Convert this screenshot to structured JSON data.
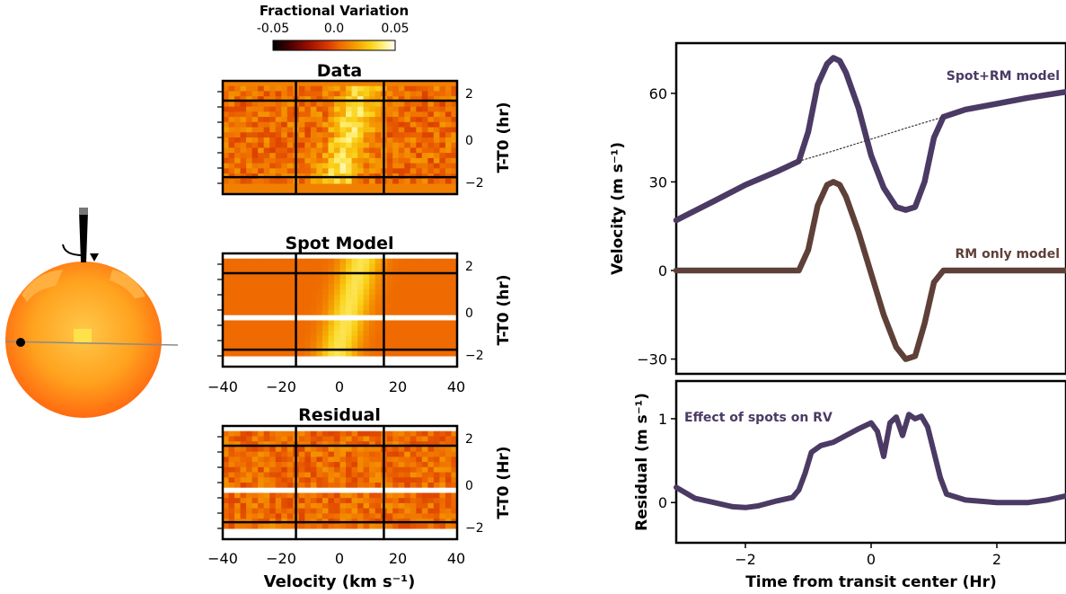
{
  "colorbar": {
    "title": "Fractional Variation",
    "ticks": [
      "-0.05",
      "0.0",
      "0.05"
    ],
    "range": [
      -0.05,
      0.05
    ]
  },
  "heatmap_panels": [
    {
      "title": "Data",
      "ylabel": "T-T0 (hr)",
      "yticks": [
        "2",
        "0",
        "−2"
      ],
      "white_band": false,
      "noisy": true,
      "signal": true
    },
    {
      "title": "Spot Model",
      "ylabel": "T-T0 (hr)",
      "yticks": [
        "2",
        "0",
        "−2"
      ],
      "white_band": true,
      "noisy": false,
      "signal": true
    },
    {
      "title": "Residual",
      "ylabel": "T-T0 (Hr)",
      "yticks": [
        "2",
        "0",
        "−2"
      ],
      "white_band": true,
      "noisy": true,
      "signal": false
    }
  ],
  "heatmap_x": {
    "ticks": [
      "−40",
      "−20",
      "0",
      "20",
      "40"
    ],
    "range": [
      -40,
      40
    ],
    "vlines": [
      -15,
      15
    ],
    "label": "Velocity (km s⁻¹)"
  },
  "colors": {
    "cmap": [
      "#000000",
      "#4a0000",
      "#a01000",
      "#d83a00",
      "#ef6a00",
      "#f5a000",
      "#fad21a",
      "#fff07a",
      "#ffffff"
    ],
    "spot_rm": "#4b3a64",
    "rm_only": "#5e4038",
    "residual": "#4b3a64",
    "star_light": "#ffc84a",
    "star_dark": "#ff6a10"
  },
  "chart_data": [
    {
      "type": "line",
      "xlabel": "",
      "ylabel": "Velocity (m s⁻¹)",
      "xlim": [
        -3.1,
        3.1
      ],
      "ylim": [
        -35,
        77
      ],
      "yticks": [
        "60",
        "30",
        "0",
        "−30"
      ],
      "grid": false,
      "series": [
        {
          "name": "Spot+RM model",
          "x": [
            -3.1,
            -2.5,
            -2.0,
            -1.5,
            -1.15,
            -1.0,
            -0.85,
            -0.7,
            -0.6,
            -0.5,
            -0.4,
            -0.2,
            0.0,
            0.2,
            0.4,
            0.55,
            0.7,
            0.85,
            1.0,
            1.15,
            1.5,
            2.0,
            2.5,
            3.1
          ],
          "y": [
            17,
            23.5,
            29,
            33.5,
            37,
            47,
            63,
            70,
            72,
            71,
            67,
            55,
            39,
            28,
            21.5,
            20.5,
            21.5,
            30,
            45,
            52,
            54.5,
            56.5,
            58.5,
            60.5
          ]
        },
        {
          "name": "RM only model",
          "x": [
            -3.1,
            -1.15,
            -1.0,
            -0.85,
            -0.7,
            -0.6,
            -0.5,
            -0.4,
            -0.2,
            0.0,
            0.2,
            0.4,
            0.55,
            0.7,
            0.85,
            1.0,
            1.15,
            3.1
          ],
          "y": [
            0,
            0,
            7,
            22,
            29,
            30,
            29,
            25,
            13,
            -1,
            -15,
            -26,
            -30,
            -29,
            -18,
            -4,
            0,
            0
          ]
        },
        {
          "x": [
            -1.15,
            -0.6,
            0.0,
            0.6,
            1.15
          ],
          "y": [
            37,
            40.5,
            44.5,
            48.5,
            52
          ],
          "style": "dotted"
        }
      ]
    },
    {
      "type": "line",
      "xlabel": "Time from transit center (Hr)",
      "ylabel": "Residual (m s⁻¹)",
      "xlim": [
        -3.1,
        3.1
      ],
      "ylim": [
        -0.48,
        1.45
      ],
      "xticks": [
        "−2",
        "0",
        "2"
      ],
      "yticks": [
        "1",
        "0"
      ],
      "grid": false,
      "annotation": "Effect of spots on RV",
      "series": [
        {
          "x": [
            -3.1,
            -2.8,
            -2.5,
            -2.2,
            -2.0,
            -1.8,
            -1.5,
            -1.25,
            -1.15,
            -1.05,
            -0.95,
            -0.8,
            -0.6,
            -0.4,
            -0.2,
            0.0,
            0.1,
            0.2,
            0.3,
            0.4,
            0.5,
            0.6,
            0.7,
            0.8,
            0.9,
            1.0,
            1.1,
            1.2,
            1.5,
            2.0,
            2.5,
            2.8,
            3.1
          ],
          "y": [
            0.18,
            0.05,
            0.0,
            -0.05,
            -0.06,
            -0.04,
            0.02,
            0.06,
            0.15,
            0.35,
            0.6,
            0.68,
            0.72,
            0.8,
            0.88,
            0.95,
            0.85,
            0.55,
            0.95,
            1.02,
            0.8,
            1.05,
            1.0,
            1.03,
            0.9,
            0.6,
            0.3,
            0.1,
            0.03,
            0.0,
            0.0,
            0.03,
            0.08
          ]
        }
      ]
    }
  ],
  "annotations": {
    "spot_rm_label": "Spot+RM model",
    "rm_only_label": "RM only model"
  }
}
